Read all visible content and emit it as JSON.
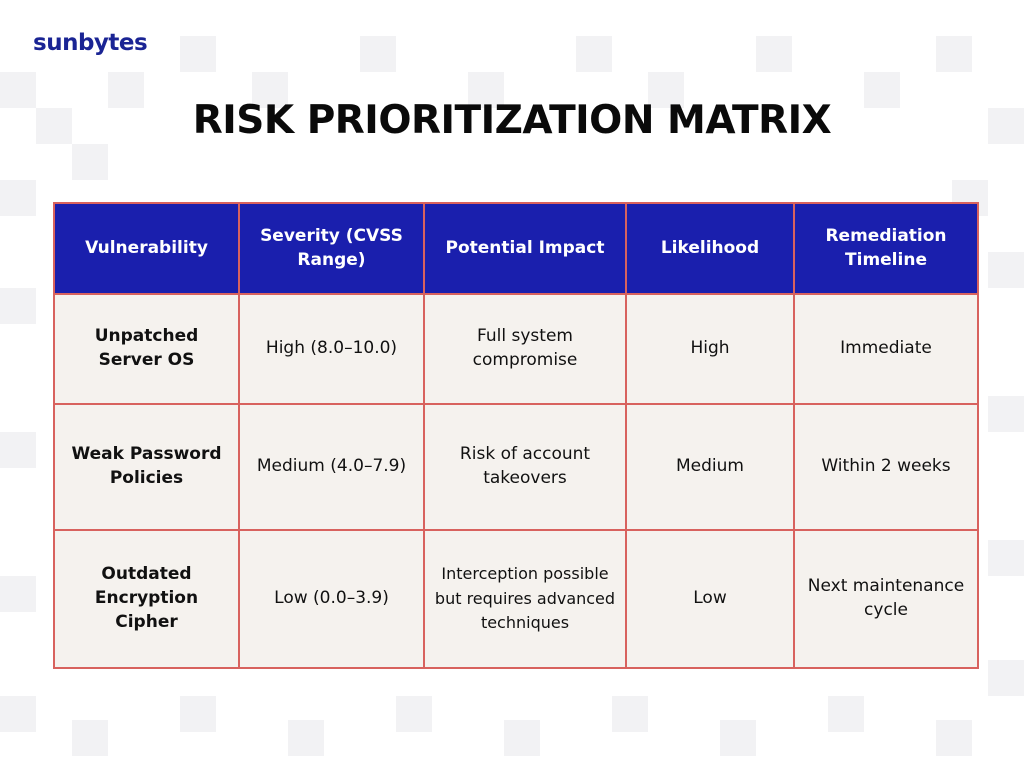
{
  "brand": {
    "logo_text": "sunbytes",
    "color": "#1a2494"
  },
  "page": {
    "title": "RISK PRIORITIZATION MATRIX"
  },
  "table": {
    "header_color": "#1a1fad",
    "border_color": "#d8625e",
    "cell_color": "#f5f2ee",
    "headers": [
      "Vulnerability",
      "Severity (CVSS Range)",
      "Potential Impact",
      "Likelihood",
      "Remediation Timeline"
    ],
    "rows": [
      {
        "vulnerability": "Unpatched Server OS",
        "severity": "High (8.0–10.0)",
        "impact": "Full system compromise",
        "likelihood": "High",
        "timeline": "Immediate"
      },
      {
        "vulnerability": "Weak Password Policies",
        "severity": "Medium (4.0–7.9)",
        "impact": "Risk of account takeovers",
        "likelihood": "Medium",
        "timeline": "Within 2 weeks"
      },
      {
        "vulnerability": "Outdated Encryption Cipher",
        "severity": "Low (0.0–3.9)",
        "impact": "Interception possible but requires advanced techniques",
        "likelihood": "Low",
        "timeline": "Next maintenance cycle"
      }
    ]
  }
}
